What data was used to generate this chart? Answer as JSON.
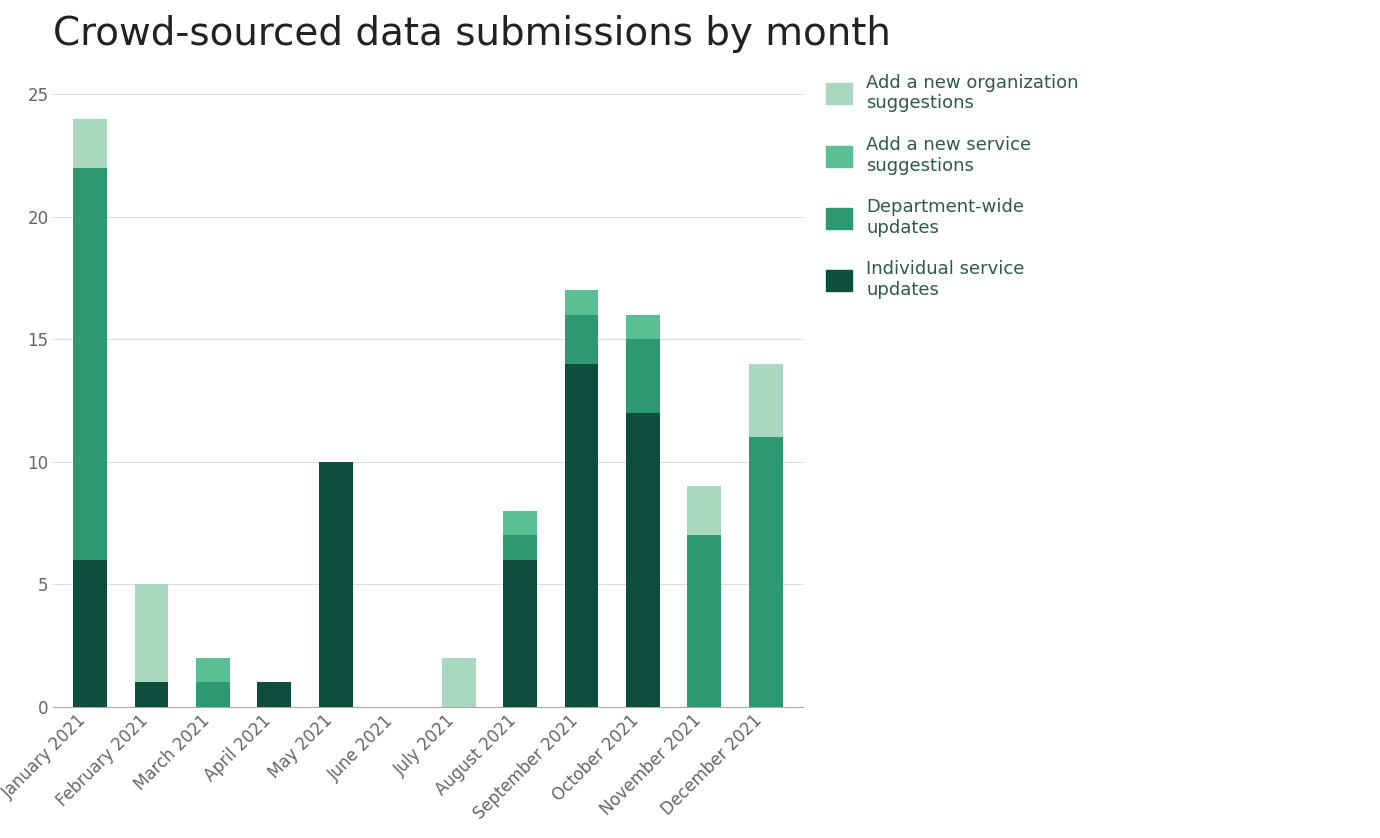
{
  "title": "Crowd-sourced data submissions by month",
  "months": [
    "January 2021",
    "February 2021",
    "March 2021",
    "April 2021",
    "May 2021",
    "June 2021",
    "July 2021",
    "August 2021",
    "September 2021",
    "October 2021",
    "November 2021",
    "December 2021"
  ],
  "series": {
    "Individual service updates": [
      6,
      1,
      0,
      1,
      10,
      0,
      0,
      6,
      14,
      12,
      0,
      0
    ],
    "Department-wide updates": [
      16,
      0,
      1,
      0,
      0,
      0,
      0,
      1,
      2,
      3,
      7,
      11
    ],
    "Add a new service suggestions": [
      0,
      0,
      1,
      0,
      0,
      0,
      0,
      1,
      1,
      1,
      0,
      0
    ],
    "Add a new organization suggestions": [
      2,
      4,
      0,
      0,
      0,
      0,
      2,
      0,
      0,
      0,
      2,
      3
    ]
  },
  "colors": {
    "Individual service updates": "#0d4f3c",
    "Department-wide updates": "#2d9970",
    "Add a new service suggestions": "#5bbf95",
    "Add a new organization suggestions": "#a8d8c0"
  },
  "legend_order": [
    "Add a new organization suggestions",
    "Add a new service suggestions",
    "Department-wide updates",
    "Individual service updates"
  ],
  "legend_labels": {
    "Add a new organization suggestions": "Add a new organization\nsuggestions",
    "Add a new service suggestions": "Add a new service\nsuggestions",
    "Department-wide updates": "Department-wide\nupdates",
    "Individual service updates": "Individual service\nupdates"
  },
  "stack_order": [
    "Individual service updates",
    "Department-wide updates",
    "Add a new service suggestions",
    "Add a new organization suggestions"
  ],
  "ylim": [
    0,
    26
  ],
  "yticks": [
    0,
    5,
    10,
    15,
    20,
    25
  ],
  "background_color": "#ffffff",
  "title_fontsize": 28,
  "tick_fontsize": 12,
  "legend_fontsize": 13
}
